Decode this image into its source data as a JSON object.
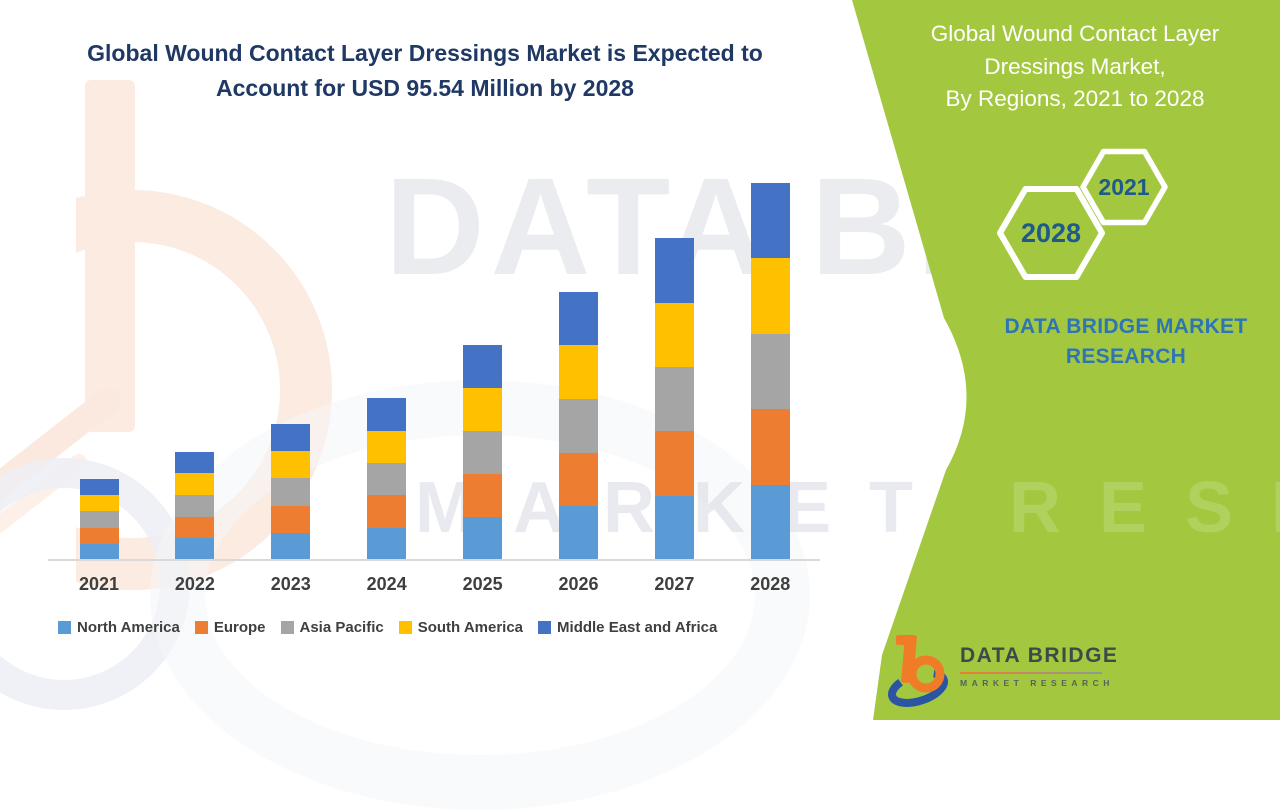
{
  "header": {
    "title_line1": "Global Wound Contact Layer Dressings Market is Expected to",
    "title_line2": "Account for USD 95.54 Million by 2028"
  },
  "side_panel": {
    "title_line1": "Global Wound Contact Layer",
    "title_line2": "Dressings Market,",
    "title_line3": "By Regions, 2021 to 2028",
    "hexagon_back_label": "2028",
    "hexagon_front_label": "2021",
    "brand_line1": "DATA BRIDGE MARKET",
    "brand_line2": "RESEARCH",
    "panel_color": "#a3c83f",
    "hex_label_color": "#1e5a8a",
    "brand_text_color": "#2e75b6"
  },
  "watermark": {
    "big_text": "DATA BRIDGE",
    "row_text": "MARKET RESEARCH"
  },
  "logo": {
    "title": "DATA BRIDGE",
    "subtitle": "MARKET RESEARCH"
  },
  "chart_data": {
    "type": "bar",
    "stacked": true,
    "title": "Global Wound Contact Layer Dressings Market, By Regions, 2021 to 2028",
    "subtitle": "Global Wound Contact Layer Dressings Market is Expected to Account for USD 95.54 Million by 2028",
    "unit": "USD Million",
    "categories": [
      "2021",
      "2022",
      "2023",
      "2024",
      "2025",
      "2026",
      "2027",
      "2028"
    ],
    "totals": [
      20.5,
      27.5,
      34.5,
      41.0,
      54.5,
      68.0,
      81.5,
      95.54
    ],
    "series": [
      {
        "name": "North America",
        "color": "#5B9BD5",
        "values": [
          4.1,
          5.5,
          6.9,
          8.2,
          10.9,
          13.6,
          16.3,
          19.11
        ]
      },
      {
        "name": "Europe",
        "color": "#ED7D31",
        "values": [
          4.1,
          5.5,
          6.9,
          8.2,
          10.9,
          13.6,
          16.3,
          19.11
        ]
      },
      {
        "name": "Asia Pacific",
        "color": "#A5A5A5",
        "values": [
          4.1,
          5.5,
          6.9,
          8.2,
          10.9,
          13.6,
          16.3,
          19.11
        ]
      },
      {
        "name": "South America",
        "color": "#FFC000",
        "values": [
          4.1,
          5.5,
          6.9,
          8.2,
          10.9,
          13.6,
          16.3,
          19.11
        ]
      },
      {
        "name": "Middle East and Africa",
        "color": "#4472C4",
        "values": [
          4.1,
          5.5,
          6.9,
          8.2,
          10.9,
          13.6,
          16.3,
          19.11
        ]
      }
    ],
    "y_axis_visible": false,
    "gridlines": false,
    "legend_position": "bottom"
  }
}
